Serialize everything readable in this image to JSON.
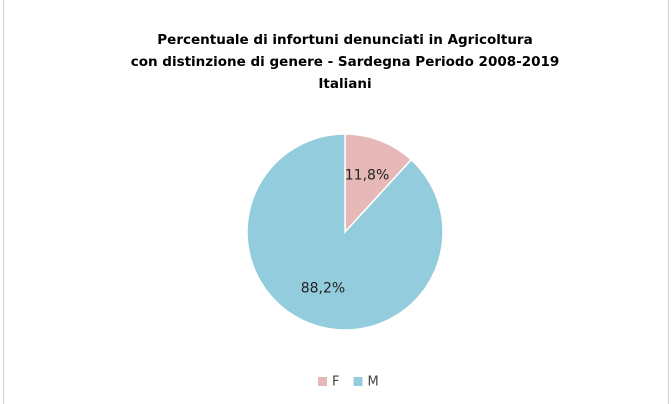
{
  "chart_data": {
    "type": "pie",
    "title": [
      "Percentuale di infortuni denunciati in Agricoltura",
      "con distinzione di genere - Sardegna Periodo 2008-2019",
      "Italiani"
    ],
    "categories": [
      "F",
      "M"
    ],
    "values": [
      11.8,
      88.2
    ],
    "value_labels": [
      "11,8%",
      "88,2%"
    ],
    "colors": [
      "#e6b9b8",
      "#93cddd"
    ],
    "legend": "bottom"
  }
}
